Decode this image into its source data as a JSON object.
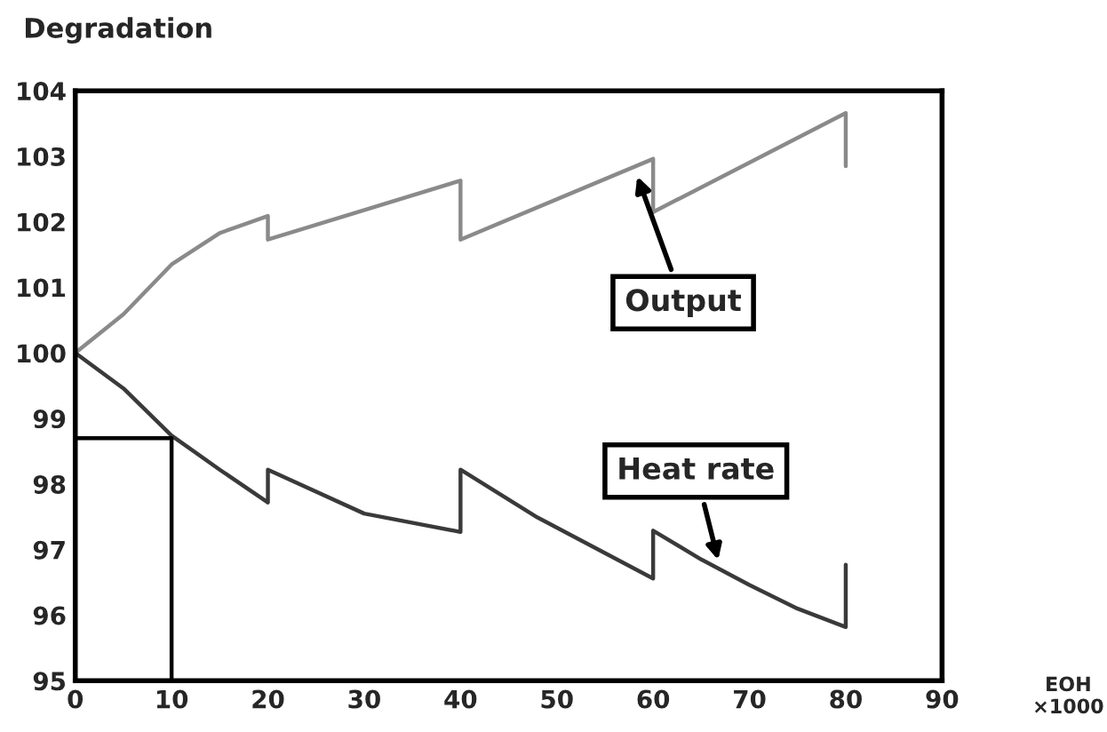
{
  "chart_data": {
    "type": "line",
    "title": "Degradation",
    "xlabel": "EOH\n×1000",
    "xlim": [
      0,
      90
    ],
    "xticks": [
      0,
      10,
      20,
      30,
      40,
      50,
      60,
      70,
      80,
      90
    ],
    "ylim": [
      95,
      104
    ],
    "yticks": [
      95,
      96,
      97,
      98,
      99,
      100,
      101,
      102,
      103,
      104
    ],
    "grid": false,
    "legend": false,
    "marker": "none",
    "line_style": "solid",
    "series": [
      {
        "name": "Output",
        "color": "#8a8a8a",
        "x": [
          0,
          5,
          10,
          15,
          20,
          20,
          40,
          40,
          60,
          60,
          80,
          80
        ],
        "values": [
          100.0,
          100.59,
          101.35,
          101.83,
          102.09,
          101.73,
          102.63,
          101.73,
          102.96,
          102.15,
          103.66,
          102.85
        ]
      },
      {
        "name": "Heat rate",
        "color": "#3a3a3a",
        "x": [
          0,
          5,
          10,
          15,
          20,
          20,
          30,
          40,
          40,
          48,
          60,
          60,
          65,
          70,
          75,
          80,
          80
        ],
        "values": [
          100.0,
          99.46,
          98.74,
          98.22,
          97.72,
          98.22,
          97.55,
          97.27,
          98.22,
          97.49,
          96.56,
          97.29,
          96.85,
          96.46,
          96.1,
          95.82,
          96.77
        ]
      },
      {
        "color": "#000000",
        "x": [
          0,
          10,
          10
        ],
        "values": [
          98.7,
          98.7,
          95
        ]
      }
    ]
  }
}
